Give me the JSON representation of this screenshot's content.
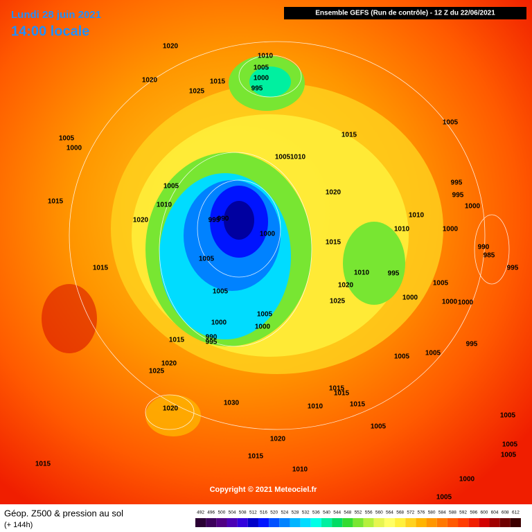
{
  "header": {
    "date": "Lundi 28 juin 2021",
    "time": "14:00 locale",
    "model": "Ensemble GEFS  (Run de contrôle)  -  12 Z du 22/06/2021"
  },
  "copyright": "Copyright © 2021 Meteociel.fr",
  "footer": {
    "title": "Géop. Z500 & pression au sol",
    "lead": "(+ 144h)"
  },
  "isobar_labels": [
    1020,
    1020,
    1025,
    1015,
    1010,
    1005,
    1000,
    995,
    1015,
    1005,
    1005,
    1000,
    1005,
    1010,
    1005,
    1010,
    1015,
    995,
    995,
    1000,
    1020,
    1020,
    995,
    990,
    1000,
    1010,
    1010,
    1000,
    1015,
    990,
    985,
    995,
    1015,
    1005,
    1010,
    995,
    1005,
    1020,
    1005,
    1025,
    1000,
    1000,
    1000,
    1005,
    1000,
    1000,
    1015,
    990,
    995,
    995,
    1005,
    1005,
    1020,
    1025,
    1015,
    1015,
    1030,
    1010,
    1015,
    1020,
    1005,
    1005,
    1020,
    1005,
    1005,
    1015,
    1015,
    1010,
    1000,
    1005
  ],
  "legend": {
    "values": [
      492,
      496,
      500,
      504,
      508,
      512,
      516,
      520,
      524,
      528,
      532,
      536,
      540,
      544,
      548,
      552,
      556,
      560,
      564,
      568,
      572,
      576,
      580,
      584,
      588,
      592,
      596,
      600,
      604,
      608,
      612
    ],
    "colors": [
      "#2a0033",
      "#3c005a",
      "#500082",
      "#4b00b4",
      "#3200dc",
      "#0000c8",
      "#0014ff",
      "#0050ff",
      "#0082ff",
      "#00b4ff",
      "#00dcff",
      "#00ffe6",
      "#00f0a0",
      "#00dc64",
      "#32dc32",
      "#78e632",
      "#b4f03c",
      "#e6f550",
      "#ffff64",
      "#fff03c",
      "#ffd21e",
      "#ffb400",
      "#ff9600",
      "#ff7800",
      "#ff5a00",
      "#ff3c00",
      "#f01e00",
      "#d20000",
      "#a00000",
      "#6e0000",
      "#3c0000"
    ]
  }
}
